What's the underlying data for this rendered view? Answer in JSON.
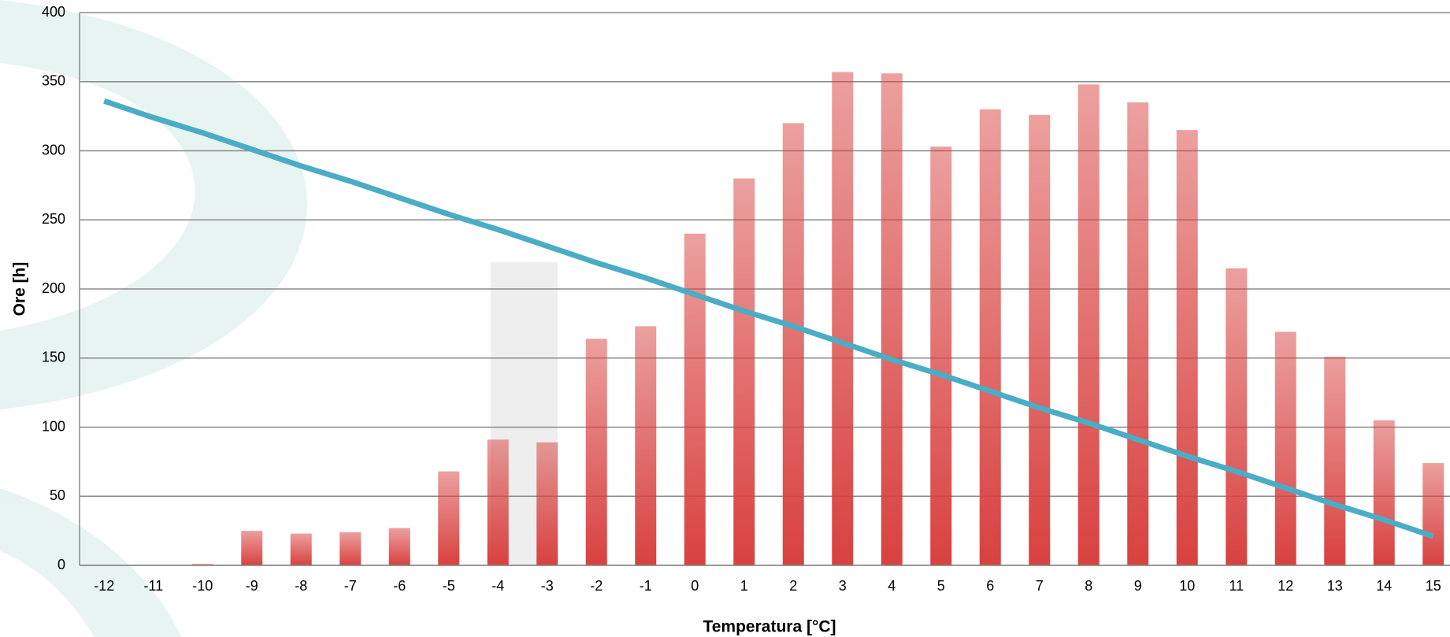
{
  "chart_data": {
    "type": "bar-line",
    "xlabel": "Temperatura [°C]",
    "ylabel": "Ore [h]",
    "categories": [
      "-12",
      "-11",
      "-10",
      "-9",
      "-8",
      "-7",
      "-6",
      "-5",
      "-4",
      "-3",
      "-2",
      "-1",
      "0",
      "1",
      "2",
      "3",
      "4",
      "5",
      "6",
      "7",
      "8",
      "9",
      "10",
      "11",
      "12",
      "13",
      "14",
      "15"
    ],
    "series": [
      {
        "type": "bar",
        "color": "#d8413f",
        "values": [
          0,
          0,
          1,
          25,
          23,
          24,
          27,
          68,
          91,
          89,
          164,
          173,
          240,
          280,
          320,
          357,
          356,
          303,
          330,
          326,
          348,
          335,
          315,
          215,
          169,
          151,
          105,
          74
        ]
      },
      {
        "type": "line",
        "color": "#4bacc6",
        "values": [
          336,
          324,
          313,
          301,
          289,
          278,
          266,
          254,
          243,
          231,
          219,
          208,
          196,
          184,
          173,
          161,
          149,
          138,
          126,
          114,
          103,
          91,
          79,
          68,
          56,
          44,
          33,
          21
        ]
      }
    ],
    "ylim": [
      0,
      400
    ],
    "yticks": [
      0,
      50,
      100,
      150,
      200,
      250,
      300,
      350,
      400
    ],
    "grid": true
  }
}
